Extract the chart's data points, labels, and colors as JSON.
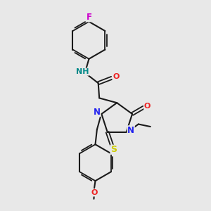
{
  "bg": "#e8e8e8",
  "bond_color": "#1a1a1a",
  "N_color": "#2222ee",
  "O_color": "#ee2222",
  "S_color": "#cccc00",
  "F_color": "#cc00cc",
  "NH_color": "#008888",
  "lw": 1.5,
  "dlw": 1.3,
  "fs": 7.5,
  "figsize": [
    3.0,
    3.0
  ],
  "dpi": 100,
  "xlim": [
    0,
    10
  ],
  "ylim": [
    0,
    10
  ]
}
